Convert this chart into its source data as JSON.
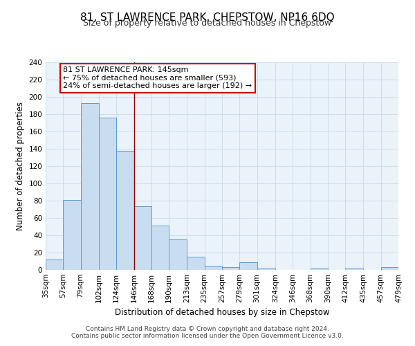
{
  "title": "81, ST LAWRENCE PARK, CHEPSTOW, NP16 6DQ",
  "subtitle": "Size of property relative to detached houses in Chepstow",
  "xlabel": "Distribution of detached houses by size in Chepstow",
  "ylabel": "Number of detached properties",
  "bar_edges": [
    35,
    57,
    79,
    102,
    124,
    146,
    168,
    190,
    213,
    235,
    257,
    279,
    301,
    324,
    346,
    368,
    390,
    412,
    435,
    457,
    479
  ],
  "bar_heights": [
    12,
    81,
    193,
    176,
    138,
    74,
    51,
    35,
    15,
    4,
    3,
    9,
    2,
    0,
    0,
    2,
    0,
    2,
    0,
    3
  ],
  "bar_color": "#c9ddf0",
  "bar_edge_color": "#5b9bd5",
  "property_line_x": 146,
  "property_line_color": "#8b0000",
  "annotation_text": "81 ST LAWRENCE PARK: 145sqm\n← 75% of detached houses are smaller (593)\n24% of semi-detached houses are larger (192) →",
  "annotation_box_color": "#ffffff",
  "annotation_box_edge_color": "#cc0000",
  "ylim": [
    0,
    240
  ],
  "yticks": [
    0,
    20,
    40,
    60,
    80,
    100,
    120,
    140,
    160,
    180,
    200,
    220,
    240
  ],
  "tick_labels": [
    "35sqm",
    "57sqm",
    "79sqm",
    "102sqm",
    "124sqm",
    "146sqm",
    "168sqm",
    "190sqm",
    "213sqm",
    "235sqm",
    "257sqm",
    "279sqm",
    "301sqm",
    "324sqm",
    "346sqm",
    "368sqm",
    "390sqm",
    "412sqm",
    "435sqm",
    "457sqm",
    "479sqm"
  ],
  "footer_line1": "Contains HM Land Registry data © Crown copyright and database right 2024.",
  "footer_line2": "Contains public sector information licensed under the Open Government Licence v3.0.",
  "grid_color": "#d0dce8",
  "background_color": "#eaf2fa",
  "title_fontsize": 11,
  "subtitle_fontsize": 9,
  "annotation_fontsize": 8,
  "axis_label_fontsize": 8.5,
  "tick_fontsize": 7.5,
  "footer_fontsize": 6.5
}
